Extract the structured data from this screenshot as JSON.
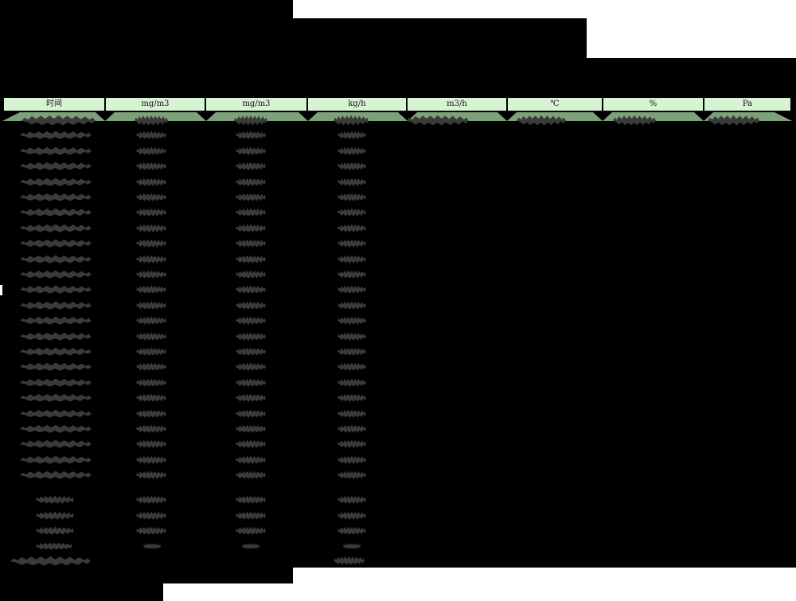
{
  "table": {
    "headers": [
      {
        "label": "时间"
      },
      {
        "label": "mg/m3"
      },
      {
        "label": "mg/m3"
      },
      {
        "label": "kg/h"
      },
      {
        "label": "m3/h"
      },
      {
        "label": "℃"
      },
      {
        "label": "%"
      },
      {
        "label": "Pa"
      }
    ],
    "redaction": {
      "data_row_count": 24,
      "first_row_spans_all_columns": true,
      "summary_row_count": 4,
      "footer_row": true
    }
  },
  "colors": {
    "background": "#000000",
    "mask_white": "#ffffff",
    "header_fill": "#d7f3d3",
    "band_fill": "#7da17a",
    "redaction_blob": "#3a3a3a"
  }
}
